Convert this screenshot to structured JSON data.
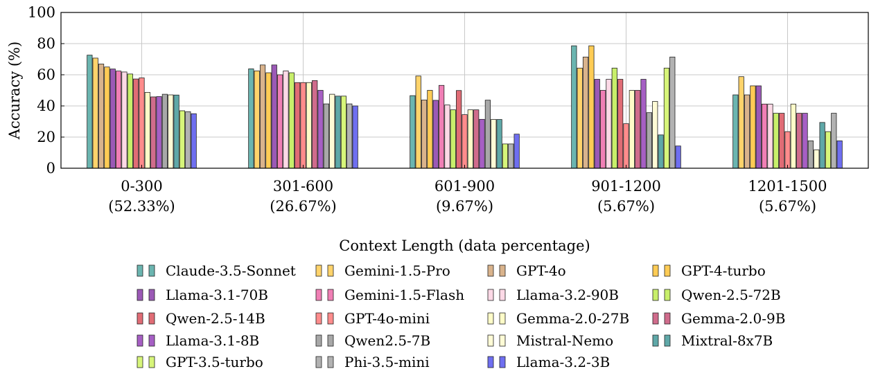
{
  "chart_data": {
    "type": "bar",
    "title": "",
    "xlabel": "Context Length (data percentage)",
    "ylabel": "Accuracy (%)",
    "ylim": [
      0,
      100
    ],
    "yticks": [
      0,
      20,
      40,
      60,
      80,
      100
    ],
    "grid": true,
    "legend_position": "bottom",
    "categories": [
      "0-300",
      "301-600",
      "601-900",
      "901-1200",
      "1201-1500"
    ],
    "category_shares": [
      "(52.33%)",
      "(26.67%)",
      "(9.67%)",
      "(5.67%)",
      "(5.67%)"
    ],
    "series": [
      {
        "name": "Claude-3.5-Sonnet",
        "color": "#6bb5b0",
        "values": [
          72.6,
          63.8,
          46.6,
          78.6,
          47.1
        ]
      },
      {
        "name": "Llama-3.1-70B",
        "color": "#9b59b6",
        "values": [
          63.7,
          66.3,
          43.6,
          57.1,
          52.9
        ]
      },
      {
        "name": "Qwen-2.5-14B",
        "color": "#e06c75",
        "values": [
          57.3,
          55.0,
          49.9,
          57.1,
          35.3
        ]
      },
      {
        "name": "Llama-3.1-8B",
        "color": "#a65fc4",
        "values": [
          46.0,
          50.0,
          31.4,
          57.1,
          35.3
        ]
      },
      {
        "name": "GPT-3.5-turbo",
        "color": "#d7f57a",
        "values": [
          36.9,
          46.3,
          15.6,
          64.3,
          23.5
        ]
      },
      {
        "name": "Gemini-1.5-Pro",
        "color": "#ffd36b",
        "values": [
          70.7,
          62.5,
          59.2,
          64.3,
          58.8
        ]
      },
      {
        "name": "Gemini-1.5-Flash",
        "color": "#f07fb5",
        "values": [
          62.4,
          60.0,
          53.2,
          50.0,
          41.2
        ]
      },
      {
        "name": "GPT-4o-mini",
        "color": "#ff8c8c",
        "values": [
          58.0,
          55.0,
          34.4,
          28.6,
          23.5
        ]
      },
      {
        "name": "Qwen2.5-7B",
        "color": "#a8a8a8",
        "values": [
          47.5,
          41.3,
          43.7,
          35.7,
          17.6
        ]
      },
      {
        "name": "Phi-3.5-mini",
        "color": "#b2b2b2",
        "values": [
          36.3,
          41.3,
          15.6,
          71.4,
          35.3
        ]
      },
      {
        "name": "GPT-4o",
        "color": "#d9b38c",
        "values": [
          66.9,
          66.3,
          43.8,
          71.4,
          47.1
        ]
      },
      {
        "name": "Llama-3.2-90B",
        "color": "#fcd9e6",
        "values": [
          61.8,
          62.5,
          40.6,
          57.1,
          41.2
        ]
      },
      {
        "name": "Gemma-2.0-27B",
        "color": "#fffcc8",
        "values": [
          48.7,
          55.0,
          37.5,
          50.0,
          41.2
        ]
      },
      {
        "name": "Mistral-Nemo",
        "color": "#fffbd6",
        "values": [
          47.1,
          47.5,
          31.3,
          42.9,
          11.8
        ]
      },
      {
        "name": "Llama-3.2-3B",
        "color": "#6f6ff0",
        "values": [
          35.0,
          40.0,
          21.9,
          14.3,
          17.6
        ]
      },
      {
        "name": "GPT-4-turbo",
        "color": "#ffcc55",
        "values": [
          65.0,
          61.3,
          50.0,
          78.6,
          52.9
        ]
      },
      {
        "name": "Qwen-2.5-72B",
        "color": "#c8ef6b",
        "values": [
          60.5,
          61.3,
          37.5,
          64.3,
          35.3
        ]
      },
      {
        "name": "Gemma-2.0-9B",
        "color": "#d06c8c",
        "values": [
          45.8,
          56.3,
          37.5,
          50.0,
          35.3
        ]
      },
      {
        "name": "Mixtral-8x7B",
        "color": "#5fa8a8",
        "values": [
          47.0,
          46.3,
          31.3,
          21.4,
          29.4
        ]
      }
    ],
    "legend_rows": [
      [
        "Claude-3.5-Sonnet",
        "Gemini-1.5-Pro",
        "GPT-4o",
        "GPT-4-turbo"
      ],
      [
        "Llama-3.1-70B",
        "Gemini-1.5-Flash",
        "Llama-3.2-90B",
        "Qwen-2.5-72B"
      ],
      [
        "Qwen-2.5-14B",
        "GPT-4o-mini",
        "Gemma-2.0-27B",
        "Gemma-2.0-9B"
      ],
      [
        "Llama-3.1-8B",
        "Qwen2.5-7B",
        "Mistral-Nemo",
        "Mixtral-8x7B"
      ],
      [
        "GPT-3.5-turbo",
        "Phi-3.5-mini",
        "Llama-3.2-3B"
      ]
    ],
    "bar_order": [
      "Claude-3.5-Sonnet",
      "Gemini-1.5-Pro",
      "GPT-4o",
      "GPT-4-turbo",
      "Llama-3.1-70B",
      "Gemini-1.5-Flash",
      "Llama-3.2-90B",
      "Qwen-2.5-72B",
      "Qwen-2.5-14B",
      "GPT-4o-mini",
      "Gemma-2.0-27B",
      "Gemma-2.0-9B",
      "Llama-3.1-8B",
      "Qwen2.5-7B",
      "Mistral-Nemo",
      "Mixtral-8x7B",
      "GPT-3.5-turbo",
      "Phi-3.5-mini",
      "Llama-3.2-3B"
    ]
  }
}
